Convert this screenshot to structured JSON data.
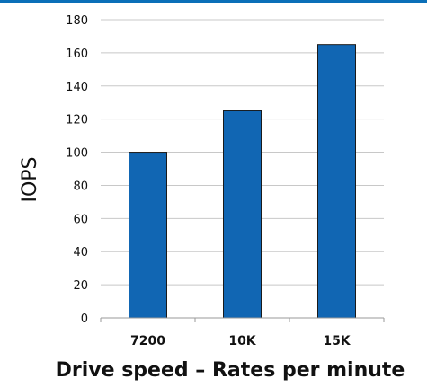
{
  "chart_data": {
    "type": "bar",
    "categories": [
      "7200",
      "10K",
      "15K"
    ],
    "values": [
      100,
      125,
      165
    ],
    "title": "",
    "xlabel": "Drive speed – Rates per minute",
    "ylabel": "IOPS",
    "ylim": [
      0,
      180
    ],
    "yticks": [
      0,
      20,
      40,
      60,
      80,
      100,
      120,
      140,
      160,
      180
    ],
    "grid": true,
    "legend": "none",
    "bar_color": "#1166b3",
    "accent_color": "#0b6fb8"
  }
}
